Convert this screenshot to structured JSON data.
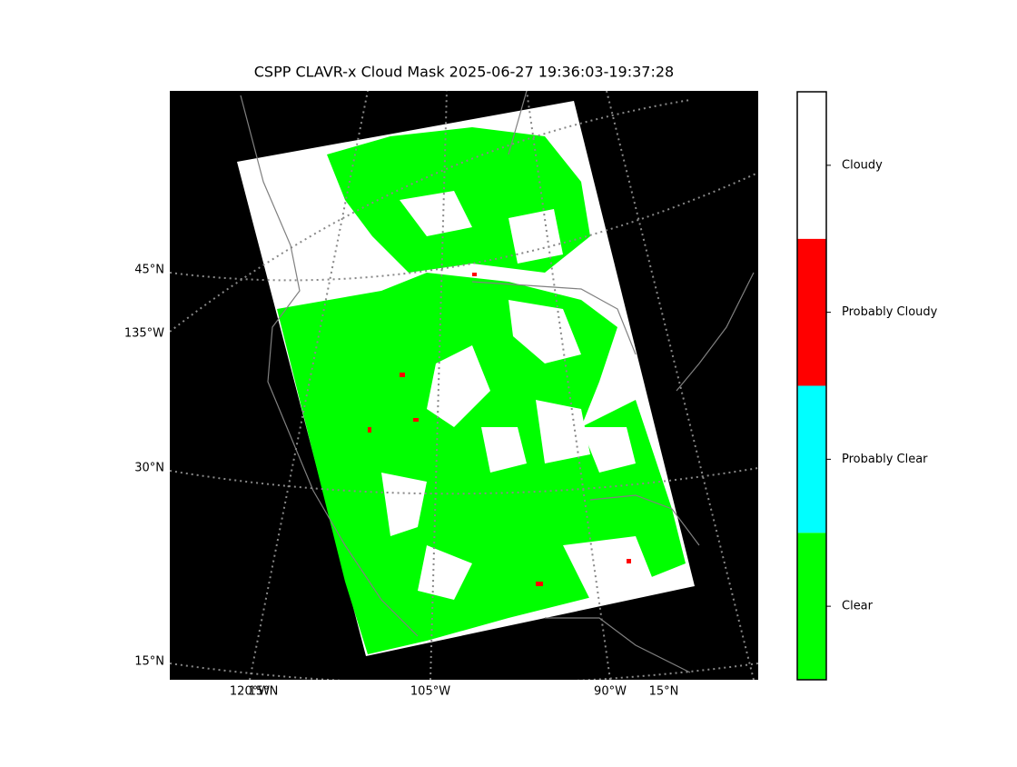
{
  "title": "CSPP CLAVR-x Cloud Mask 2025-06-27 19:36:03-19:37:28",
  "map": {
    "left_labels": [
      "45°N",
      "135°W",
      "30°N",
      "15°N"
    ],
    "bottom_labels": [
      "120°W",
      "15°N",
      "105°W",
      "90°W",
      "15°N"
    ]
  },
  "colorbar": {
    "classes": [
      {
        "label": "Clear",
        "color": "#00ff00"
      },
      {
        "label": "Probably Clear",
        "color": "#00ffff"
      },
      {
        "label": "Probably Cloudy",
        "color": "#ff0000"
      },
      {
        "label": "Cloudy",
        "color": "#ffffff"
      }
    ]
  }
}
